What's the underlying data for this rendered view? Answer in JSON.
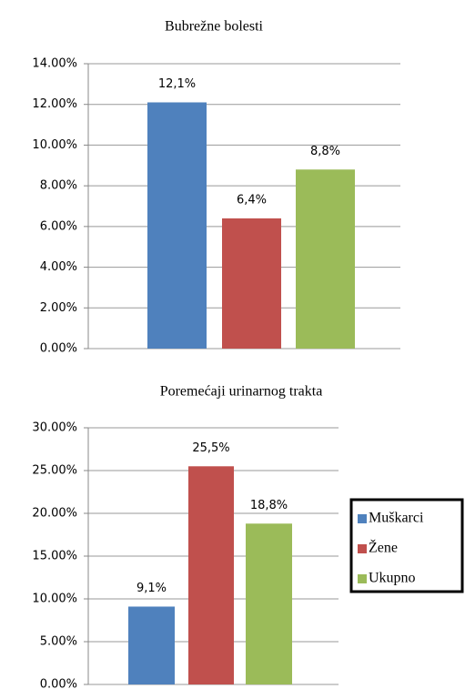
{
  "chart_data": [
    {
      "type": "bar",
      "title": "Bubrežne bolesti",
      "series": [
        {
          "color": "#4f81bd",
          "values": [
            12.1
          ],
          "value_labels": [
            "12,1%"
          ]
        },
        {
          "color": "#c0504d",
          "values": [
            6.4
          ],
          "value_labels": [
            "6,4%"
          ]
        },
        {
          "color": "#9bbb59",
          "values": [
            8.8
          ],
          "value_labels": [
            "8,8%"
          ]
        }
      ],
      "ylim": [
        0,
        14
      ],
      "yticks": [
        {
          "value": 0,
          "label": "0.00%"
        },
        {
          "value": 2,
          "label": "2.00%"
        },
        {
          "value": 4,
          "label": "4.00%"
        },
        {
          "value": 6,
          "label": "6.00%"
        },
        {
          "value": 8,
          "label": "8.00%"
        },
        {
          "value": 10,
          "label": "10.00%"
        },
        {
          "value": 12,
          "label": "12.00%"
        },
        {
          "value": 14,
          "label": "14.00%"
        }
      ],
      "grid": true
    },
    {
      "type": "bar",
      "title": "Poremećaji urinarnog trakta",
      "series": [
        {
          "name": "Muškarci",
          "color": "#4f81bd",
          "values": [
            9.1
          ],
          "value_labels": [
            "9,1%"
          ]
        },
        {
          "name": "Žene",
          "color": "#c0504d",
          "values": [
            25.5
          ],
          "value_labels": [
            "25,5%"
          ]
        },
        {
          "name": "Ukupno",
          "color": "#9bbb59",
          "values": [
            18.8
          ],
          "value_labels": [
            "18,8%"
          ]
        }
      ],
      "ylim": [
        0,
        30
      ],
      "yticks": [
        {
          "value": 0,
          "label": "0.00%"
        },
        {
          "value": 5,
          "label": "5.00%"
        },
        {
          "value": 10,
          "label": "10.00%"
        },
        {
          "value": 15,
          "label": "15.00%"
        },
        {
          "value": 20,
          "label": "20.00%"
        },
        {
          "value": 25,
          "label": "25.00%"
        },
        {
          "value": 30,
          "label": "30.00%"
        }
      ],
      "grid": true,
      "legend": "right"
    }
  ]
}
